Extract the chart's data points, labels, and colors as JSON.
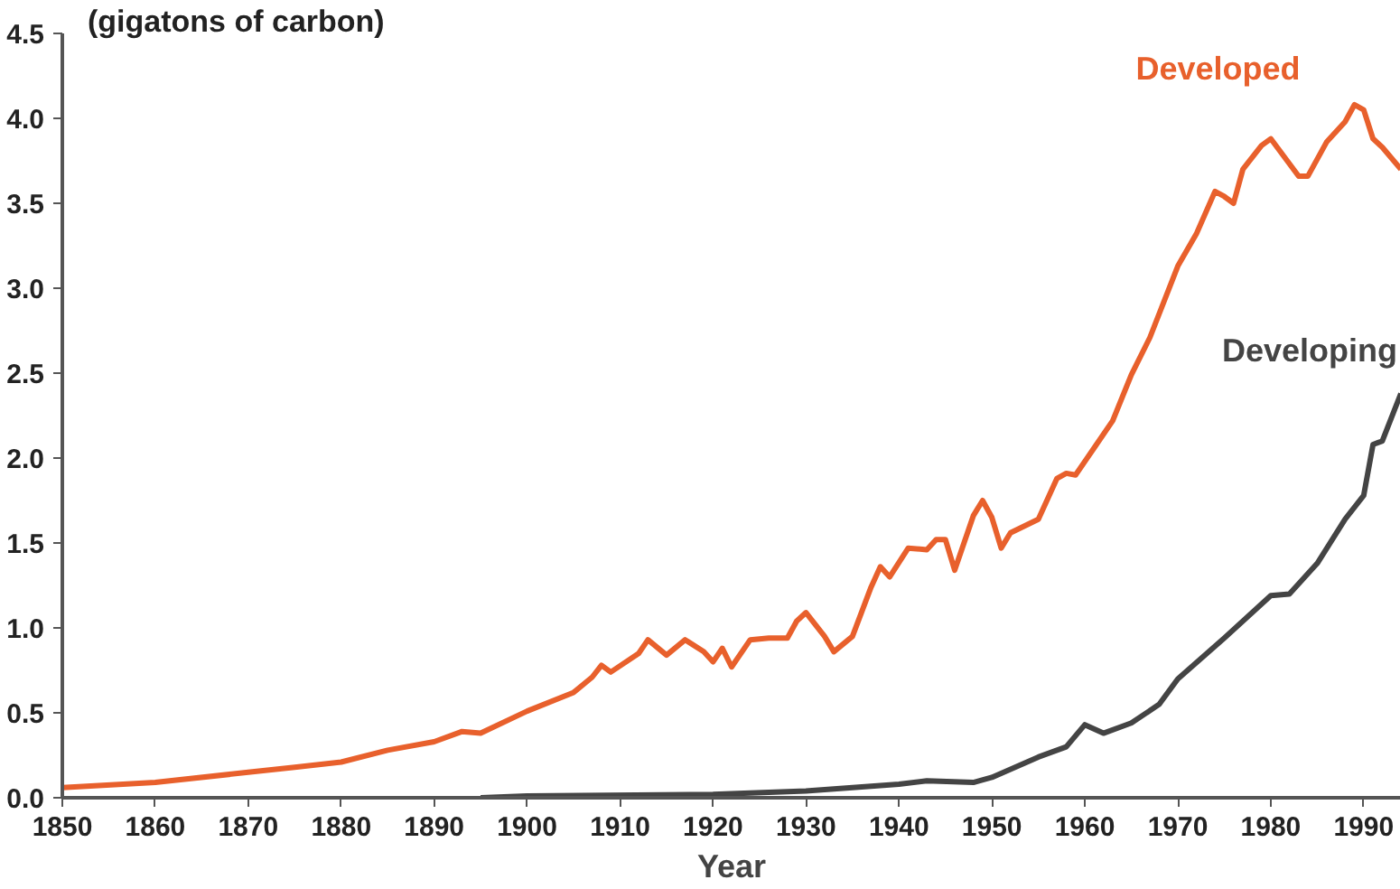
{
  "chart_data": {
    "type": "line",
    "ylabel": "(gigatons of carbon)",
    "xlabel": "Year",
    "xlim": [
      1850,
      1994
    ],
    "ylim": [
      0,
      4.5
    ],
    "xticks": [
      1850,
      1860,
      1870,
      1880,
      1890,
      1900,
      1910,
      1920,
      1930,
      1940,
      1950,
      1960,
      1970,
      1980,
      1990
    ],
    "yticks": [
      {
        "value": 0,
        "label": "0.0"
      },
      {
        "value": 0.5,
        "label": "0.5"
      },
      {
        "value": 1,
        "label": "1.0"
      },
      {
        "value": 1.5,
        "label": "1.5"
      },
      {
        "value": 2,
        "label": "2.0"
      },
      {
        "value": 2.5,
        "label": "2.5"
      },
      {
        "value": 3,
        "label": "3.0"
      },
      {
        "value": 3.5,
        "label": "3.5"
      },
      {
        "value": 4,
        "label": "4.0"
      },
      {
        "value": 4.5,
        "label": "4.5"
      }
    ],
    "grid": false,
    "marker": "none",
    "line_style": "solid",
    "series": [
      {
        "name": "Developed",
        "color": "#e8602c",
        "x": [
          1850,
          1860,
          1870,
          1875,
          1880,
          1885,
          1890,
          1893,
          1895,
          1900,
          1905,
          1907,
          1908,
          1909,
          1912,
          1913,
          1915,
          1917,
          1919,
          1920,
          1921,
          1922,
          1924,
          1926,
          1928,
          1929,
          1930,
          1932,
          1933,
          1935,
          1937,
          1938,
          1939,
          1941,
          1943,
          1944,
          1945,
          1946,
          1948,
          1949,
          1950,
          1951,
          1952,
          1955,
          1957,
          1958,
          1959,
          1961,
          1963,
          1965,
          1967,
          1970,
          1972,
          1974,
          1975,
          1976,
          1977,
          1979,
          1980,
          1983,
          1984,
          1986,
          1988,
          1989,
          1990,
          1991,
          1992,
          1994
        ],
        "values": [
          0.06,
          0.09,
          0.15,
          0.18,
          0.21,
          0.28,
          0.33,
          0.39,
          0.38,
          0.51,
          0.62,
          0.71,
          0.78,
          0.74,
          0.85,
          0.93,
          0.84,
          0.93,
          0.86,
          0.8,
          0.88,
          0.77,
          0.93,
          0.94,
          0.94,
          1.04,
          1.09,
          0.95,
          0.86,
          0.95,
          1.24,
          1.36,
          1.3,
          1.47,
          1.46,
          1.52,
          1.52,
          1.34,
          1.66,
          1.75,
          1.65,
          1.47,
          1.56,
          1.64,
          1.88,
          1.91,
          1.9,
          2.06,
          2.22,
          2.49,
          2.71,
          3.13,
          3.32,
          3.57,
          3.54,
          3.5,
          3.7,
          3.84,
          3.88,
          3.66,
          3.66,
          3.86,
          3.98,
          4.08,
          4.05,
          3.88,
          3.83,
          3.7
        ]
      },
      {
        "name": "Developing",
        "color": "#444444",
        "x": [
          1895,
          1900,
          1920,
          1930,
          1940,
          1943,
          1948,
          1950,
          1955,
          1958,
          1960,
          1962,
          1965,
          1968,
          1970,
          1975,
          1980,
          1982,
          1985,
          1988,
          1990,
          1991,
          1992,
          1994
        ],
        "values": [
          0.0,
          0.01,
          0.02,
          0.04,
          0.08,
          0.1,
          0.09,
          0.12,
          0.24,
          0.3,
          0.43,
          0.38,
          0.44,
          0.55,
          0.7,
          0.94,
          1.19,
          1.2,
          1.38,
          1.64,
          1.78,
          2.08,
          2.1,
          2.38
        ]
      }
    ]
  }
}
